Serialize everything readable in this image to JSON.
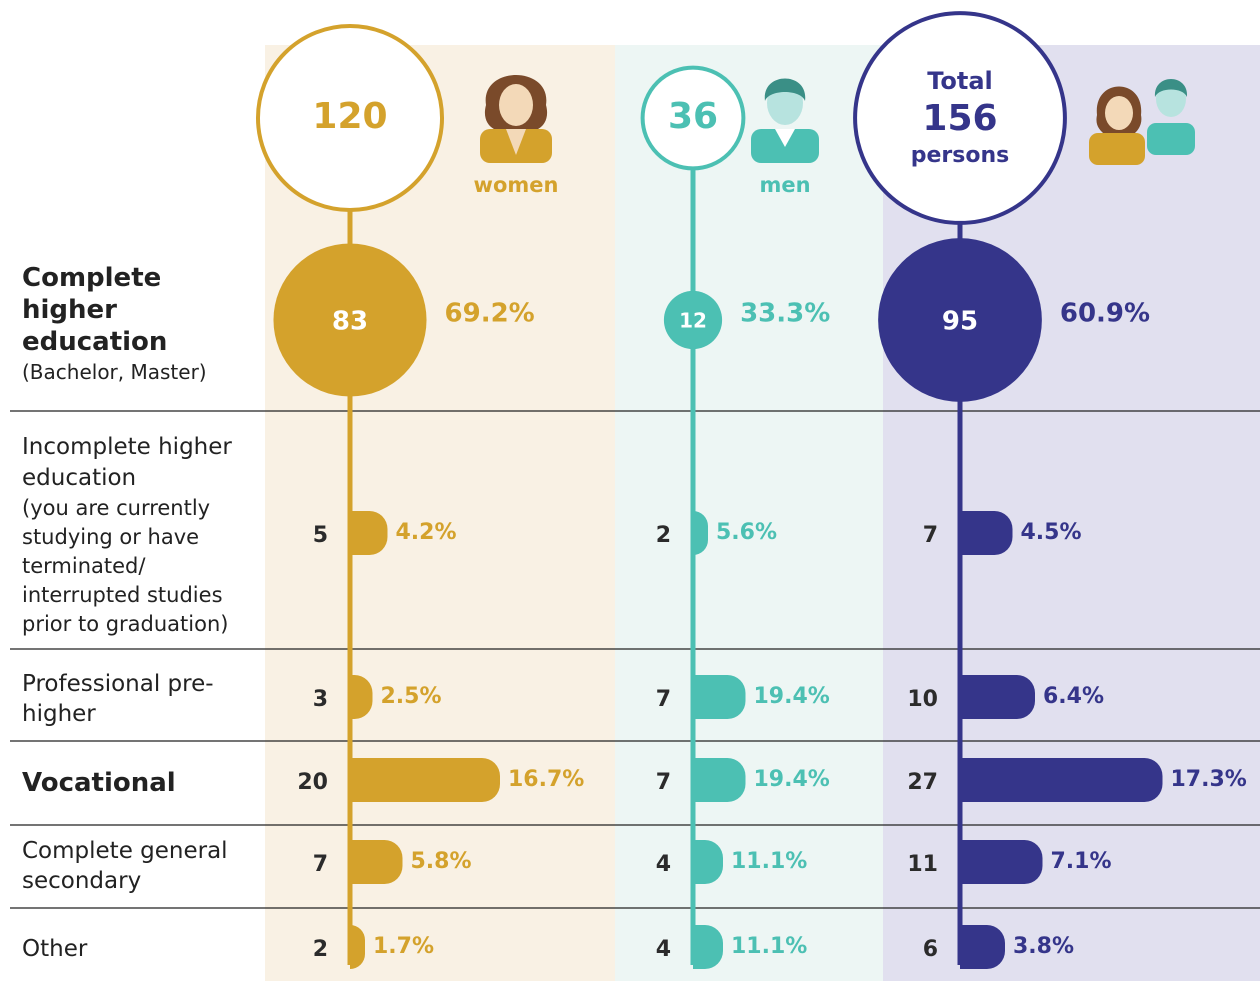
{
  "categories": [
    {
      "title": "Complete higher education",
      "note": "(Bachelor, Master)"
    },
    {
      "title": "Incomplete higher education",
      "note": "(you are currently studying or have terminated/ interrupted studies prior to graduation)"
    },
    {
      "title": "Professional pre-higher"
    },
    {
      "title": "Vocational"
    },
    {
      "title": "Complete general secondary"
    },
    {
      "title": "Other"
    }
  ],
  "groups": [
    {
      "label": "women",
      "total": 120,
      "color": "#d4a22c",
      "background": "#f9f1e4",
      "counts": [
        83,
        5,
        3,
        20,
        7,
        2
      ],
      "percents": [
        "69.2%",
        "4.2%",
        "2.5%",
        "16.7%",
        "5.8%",
        "1.7%"
      ]
    },
    {
      "label": "men",
      "total": 36,
      "color": "#4cc0b3",
      "background": "#edf6f4",
      "counts": [
        12,
        2,
        7,
        7,
        4,
        4
      ],
      "percents": [
        "33.3%",
        "5.6%",
        "19.4%",
        "19.4%",
        "11.1%",
        "11.1%"
      ]
    },
    {
      "label_top": "Total",
      "total": 156,
      "label_bottom": "persons",
      "color": "#35358a",
      "background": "#e1e0ef",
      "counts": [
        95,
        7,
        10,
        27,
        11,
        6
      ],
      "percents": [
        "60.9%",
        "4.5%",
        "6.4%",
        "17.3%",
        "7.1%",
        "3.8%"
      ]
    }
  ]
}
